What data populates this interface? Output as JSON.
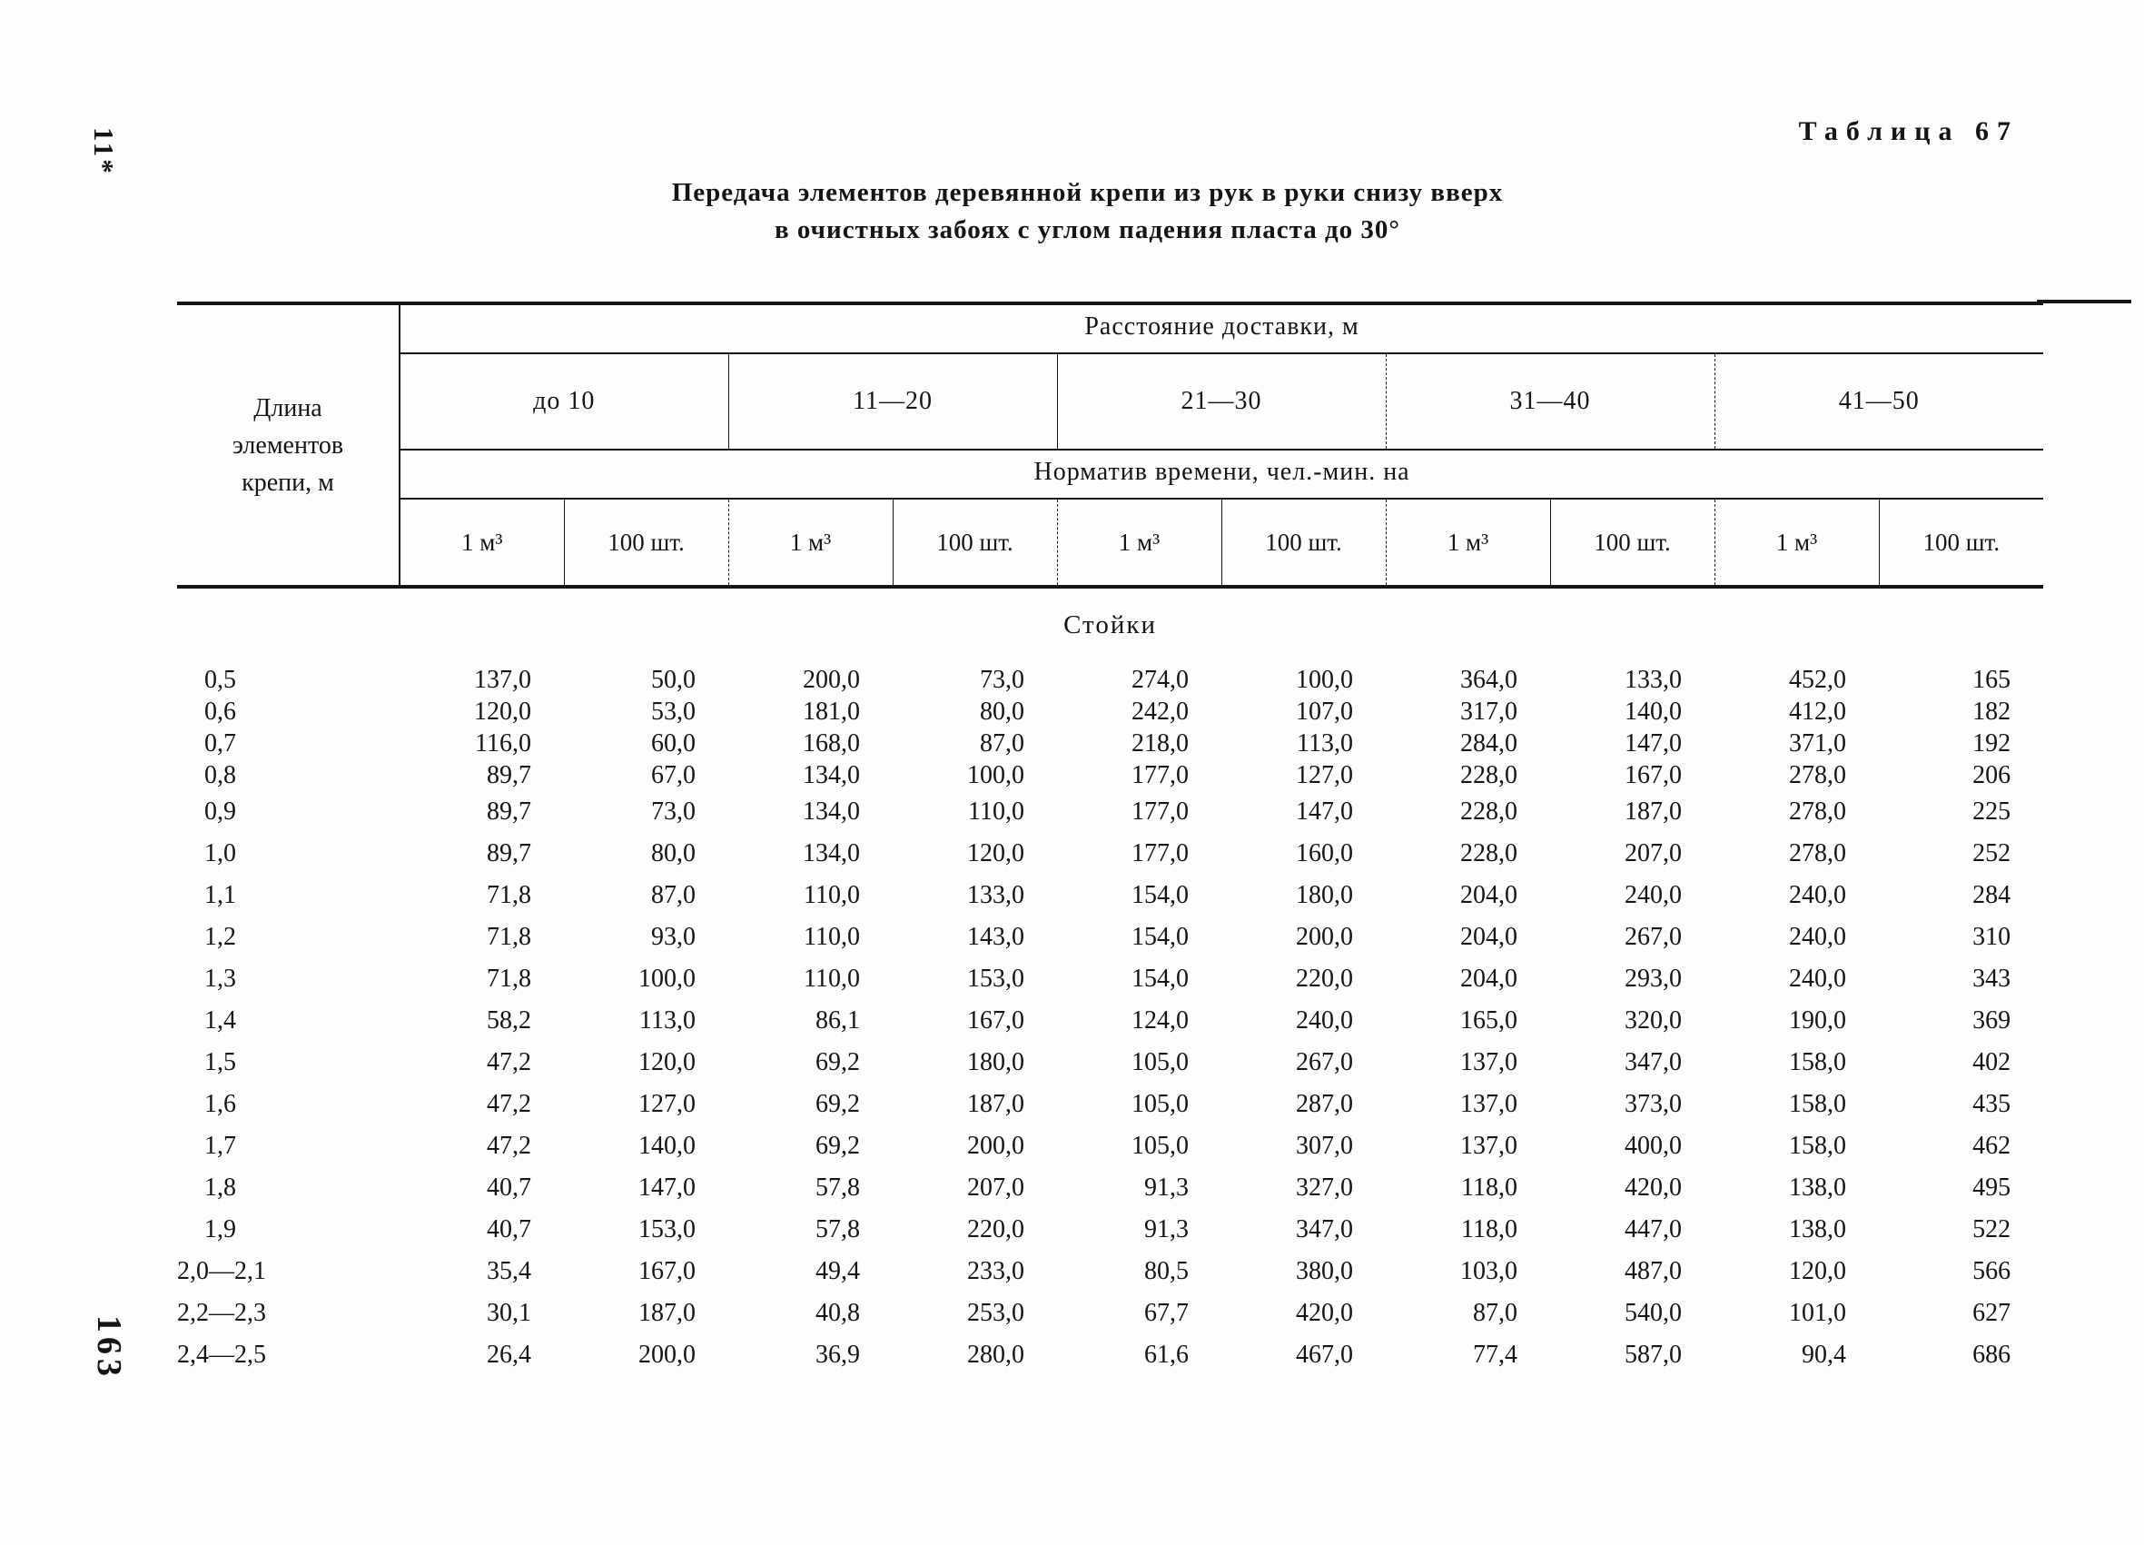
{
  "page": {
    "margin_note_top": "11*",
    "page_number": "163",
    "table_label": "Таблица 67",
    "title_line1": "Передача элементов деревянной крепи из рук в руки снизу вверх",
    "title_line2": "в очистных забоях с углом падения пласта до 30°"
  },
  "table": {
    "row_header_line1": "Длина",
    "row_header_line2": "элементов",
    "row_header_line3": "крепи, м",
    "distance_header": "Расстояние доставки, м",
    "distance_ranges": [
      "до  10",
      "11—20",
      "21—30",
      "31—40",
      "41—50"
    ],
    "norm_header": "Норматив времени, чел.-мин. на",
    "unit_m3": "1 м³",
    "unit_sht": "100 шт.",
    "section_label": "Стойки",
    "rows": [
      {
        "length": "0,5",
        "values": [
          "137,0",
          "50,0",
          "200,0",
          "73,0",
          "274,0",
          "100,0",
          "364,0",
          "133,0",
          "452,0",
          "165"
        ]
      },
      {
        "length": "0,6",
        "values": [
          "120,0",
          "53,0",
          "181,0",
          "80,0",
          "242,0",
          "107,0",
          "317,0",
          "140,0",
          "412,0",
          "182"
        ]
      },
      {
        "length": "0,7",
        "values": [
          "116,0",
          "60,0",
          "168,0",
          "87,0",
          "218,0",
          "113,0",
          "284,0",
          "147,0",
          "371,0",
          "192"
        ]
      },
      {
        "length": "0,8",
        "values": [
          "89,7",
          "67,0",
          "134,0",
          "100,0",
          "177,0",
          "127,0",
          "228,0",
          "167,0",
          "278,0",
          "206"
        ]
      },
      {
        "length": "0,9",
        "values": [
          "89,7",
          "73,0",
          "134,0",
          "110,0",
          "177,0",
          "147,0",
          "228,0",
          "187,0",
          "278,0",
          "225"
        ]
      },
      {
        "length": "1,0",
        "values": [
          "89,7",
          "80,0",
          "134,0",
          "120,0",
          "177,0",
          "160,0",
          "228,0",
          "207,0",
          "278,0",
          "252"
        ]
      },
      {
        "length": "1,1",
        "values": [
          "71,8",
          "87,0",
          "110,0",
          "133,0",
          "154,0",
          "180,0",
          "204,0",
          "240,0",
          "240,0",
          "284"
        ]
      },
      {
        "length": "1,2",
        "values": [
          "71,8",
          "93,0",
          "110,0",
          "143,0",
          "154,0",
          "200,0",
          "204,0",
          "267,0",
          "240,0",
          "310"
        ]
      },
      {
        "length": "1,3",
        "values": [
          "71,8",
          "100,0",
          "110,0",
          "153,0",
          "154,0",
          "220,0",
          "204,0",
          "293,0",
          "240,0",
          "343"
        ]
      },
      {
        "length": "1,4",
        "values": [
          "58,2",
          "113,0",
          "86,1",
          "167,0",
          "124,0",
          "240,0",
          "165,0",
          "320,0",
          "190,0",
          "369"
        ]
      },
      {
        "length": "1,5",
        "values": [
          "47,2",
          "120,0",
          "69,2",
          "180,0",
          "105,0",
          "267,0",
          "137,0",
          "347,0",
          "158,0",
          "402"
        ]
      },
      {
        "length": "1,6",
        "values": [
          "47,2",
          "127,0",
          "69,2",
          "187,0",
          "105,0",
          "287,0",
          "137,0",
          "373,0",
          "158,0",
          "435"
        ]
      },
      {
        "length": "1,7",
        "values": [
          "47,2",
          "140,0",
          "69,2",
          "200,0",
          "105,0",
          "307,0",
          "137,0",
          "400,0",
          "158,0",
          "462"
        ]
      },
      {
        "length": "1,8",
        "values": [
          "40,7",
          "147,0",
          "57,8",
          "207,0",
          "91,3",
          "327,0",
          "118,0",
          "420,0",
          "138,0",
          "495"
        ]
      },
      {
        "length": "1,9",
        "values": [
          "40,7",
          "153,0",
          "57,8",
          "220,0",
          "91,3",
          "347,0",
          "118,0",
          "447,0",
          "138,0",
          "522"
        ]
      },
      {
        "length": "2,0—2,1",
        "values": [
          "35,4",
          "167,0",
          "49,4",
          "233,0",
          "80,5",
          "380,0",
          "103,0",
          "487,0",
          "120,0",
          "566"
        ]
      },
      {
        "length": "2,2—2,3",
        "values": [
          "30,1",
          "187,0",
          "40,8",
          "253,0",
          "67,7",
          "420,0",
          "87,0",
          "540,0",
          "101,0",
          "627"
        ]
      },
      {
        "length": "2,4—2,5",
        "values": [
          "26,4",
          "200,0",
          "36,9",
          "280,0",
          "61,6",
          "467,0",
          "77,4",
          "587,0",
          "90,4",
          "686"
        ]
      }
    ]
  }
}
